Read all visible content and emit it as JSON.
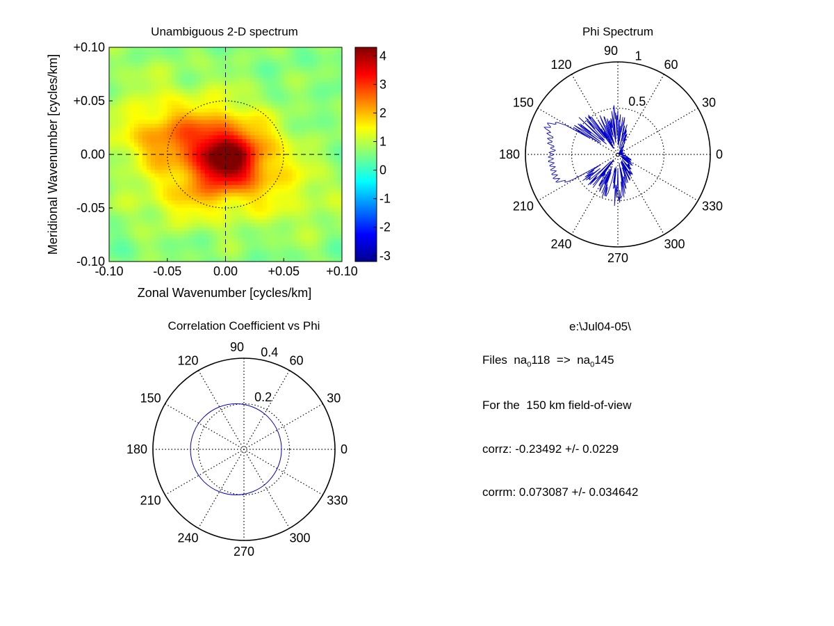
{
  "chart_data": [
    {
      "type": "heatmap",
      "title": "Unambiguous 2-D spectrum",
      "xlabel": "Zonal Wavenumber [cycles/km]",
      "ylabel": "Meridional Wavenumber [cycles/km]",
      "xlim": [
        -0.1,
        0.1
      ],
      "ylim": [
        -0.1,
        0.1
      ],
      "x_ticks": [
        "-0.10",
        "-0.05",
        "0.00",
        "+0.05",
        "+0.10"
      ],
      "y_ticks": [
        "+0.10",
        "+0.05",
        "0.00",
        "-0.05",
        "-0.10"
      ],
      "colorbar": {
        "range": [
          -3.2,
          4.3
        ],
        "ticks": [
          "4",
          "3",
          "2",
          "1",
          "0",
          "-1",
          "-2",
          "-3"
        ],
        "colormap": "jet"
      },
      "background_level": 0.6,
      "peak": {
        "x": 0.0,
        "y": -0.008,
        "value": 4.2
      },
      "blobs": [
        {
          "x": 0.0,
          "y": -0.005,
          "sx": 0.018,
          "sy": 0.018,
          "amp": 2.4
        },
        {
          "x": -0.01,
          "y": 0.012,
          "sx": 0.03,
          "sy": 0.03,
          "amp": 1.3
        },
        {
          "x": -0.055,
          "y": 0.015,
          "sx": 0.028,
          "sy": 0.02,
          "amp": 1.2
        },
        {
          "x": 0.03,
          "y": -0.005,
          "sx": 0.025,
          "sy": 0.025,
          "amp": 0.8
        },
        {
          "x": -0.03,
          "y": -0.04,
          "sx": 0.035,
          "sy": 0.02,
          "amp": 0.9
        },
        {
          "x": 0.06,
          "y": -0.04,
          "sx": 0.03,
          "sy": 0.025,
          "amp": 0.5
        },
        {
          "x": -0.07,
          "y": 0.055,
          "sx": 0.03,
          "sy": 0.03,
          "amp": 0.3
        }
      ],
      "reference_circle_radius": 0.05,
      "crosshair": [
        0.0,
        0.0
      ],
      "grid": false
    },
    {
      "type": "polar-line",
      "title": "Phi Spectrum",
      "r_max": 1,
      "r_ticks": [
        "0.5",
        "1"
      ],
      "theta_ticks": [
        "0",
        "30",
        "60",
        "90",
        "120",
        "150",
        "180",
        "210",
        "240",
        "270",
        "300",
        "330"
      ],
      "series_color": "#0000c8",
      "grid": "dotted",
      "profile": [
        {
          "theta": 0,
          "r": 0.05
        },
        {
          "theta": 10,
          "r": 0.08
        },
        {
          "theta": 20,
          "r": 0.06
        },
        {
          "theta": 30,
          "r": 0.06
        },
        {
          "theta": 40,
          "r": 0.08
        },
        {
          "theta": 50,
          "r": 0.1
        },
        {
          "theta": 60,
          "r": 0.15
        },
        {
          "theta": 70,
          "r": 0.3
        },
        {
          "theta": 80,
          "r": 0.45
        },
        {
          "theta": 90,
          "r": 0.62
        },
        {
          "theta": 100,
          "r": 0.45
        },
        {
          "theta": 110,
          "r": 0.45
        },
        {
          "theta": 120,
          "r": 0.5
        },
        {
          "theta": 130,
          "r": 0.55
        },
        {
          "theta": 140,
          "r": 0.62
        },
        {
          "theta": 150,
          "r": 0.65
        },
        {
          "theta": 155,
          "r": 0.8
        },
        {
          "theta": 160,
          "r": 0.82
        },
        {
          "theta": 165,
          "r": 0.75
        },
        {
          "theta": 170,
          "r": 0.75
        },
        {
          "theta": 175,
          "r": 0.7
        },
        {
          "theta": 180,
          "r": 0.72
        },
        {
          "theta": 185,
          "r": 0.73
        },
        {
          "theta": 190,
          "r": 0.72
        },
        {
          "theta": 195,
          "r": 0.72
        },
        {
          "theta": 200,
          "r": 0.72
        },
        {
          "theta": 205,
          "r": 0.7
        },
        {
          "theta": 210,
          "r": 0.55
        },
        {
          "theta": 220,
          "r": 0.5
        },
        {
          "theta": 230,
          "r": 0.45
        },
        {
          "theta": 240,
          "r": 0.45
        },
        {
          "theta": 250,
          "r": 0.5
        },
        {
          "theta": 260,
          "r": 0.55
        },
        {
          "theta": 270,
          "r": 0.58
        },
        {
          "theta": 280,
          "r": 0.45
        },
        {
          "theta": 290,
          "r": 0.35
        },
        {
          "theta": 300,
          "r": 0.3
        },
        {
          "theta": 310,
          "r": 0.25
        },
        {
          "theta": 320,
          "r": 0.2
        },
        {
          "theta": 330,
          "r": 0.2
        },
        {
          "theta": 340,
          "r": 0.15
        },
        {
          "theta": 350,
          "r": 0.1
        },
        {
          "theta": 360,
          "r": 0.05
        }
      ]
    },
    {
      "type": "polar-line",
      "title": "Correlation Coefficient vs Phi",
      "r_max": 0.4,
      "r_ticks": [
        "0.2",
        "0.4"
      ],
      "theta_ticks": [
        "0",
        "30",
        "60",
        "90",
        "120",
        "150",
        "180",
        "210",
        "240",
        "270",
        "300",
        "330"
      ],
      "series_color": "#0000c8",
      "grid": "dotted",
      "series": [
        {
          "shape": "circle",
          "radius": 0.2,
          "center": [
            -0.035,
            0.0
          ]
        }
      ]
    }
  ],
  "info": {
    "path": "e:\\Jul04-05\\",
    "files_prefix": "Files  na",
    "files_sub1": "0",
    "files_mid": "118  =>  na",
    "files_sub2": "0",
    "files_end": "145",
    "fov": "For the  150 km field-of-view",
    "corrz": "corrz: -0.23492 +/- 0.0229",
    "corrm": "corrm: 0.073087 +/- 0.034642"
  }
}
